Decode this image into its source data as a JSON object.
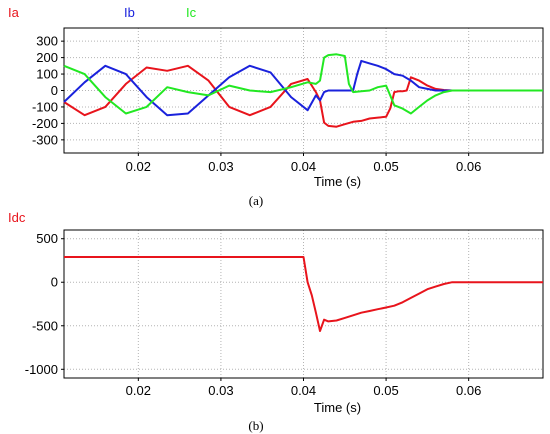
{
  "chart_data": [
    {
      "type": "line",
      "panel": "(a)",
      "xlabel": "Time (s)",
      "xlim": [
        0.011,
        0.069
      ],
      "xticks": [
        "0.02",
        "0.03",
        "0.04",
        "0.05",
        "0.06"
      ],
      "ylim": [
        -380,
        380
      ],
      "yticks": [
        "300",
        "200",
        "100",
        "0",
        "-100",
        "-200",
        "-300"
      ],
      "grid": true,
      "legend": "top-left",
      "series": [
        {
          "name": "Ia",
          "color": "#e8141c",
          "x": [
            0.011,
            0.0135,
            0.016,
            0.0185,
            0.021,
            0.0235,
            0.026,
            0.0285,
            0.031,
            0.0335,
            0.036,
            0.0385,
            0.0405,
            0.0415,
            0.042,
            0.0425,
            0.043,
            0.044,
            0.045,
            0.046,
            0.047,
            0.048,
            0.049,
            0.05,
            0.0505,
            0.051,
            0.0515,
            0.052,
            0.0525,
            0.053,
            0.054,
            0.055,
            0.056,
            0.057,
            0.058,
            0.069
          ],
          "y": [
            -70,
            -150,
            -100,
            40,
            140,
            120,
            150,
            60,
            -100,
            -150,
            -100,
            40,
            70,
            -10,
            -60,
            -195,
            -215,
            -220,
            -205,
            -190,
            -185,
            -170,
            -165,
            -160,
            -110,
            -10,
            -5,
            -5,
            0,
            80,
            60,
            30,
            10,
            3,
            0,
            0
          ]
        },
        {
          "name": "Ib",
          "color": "#1a22dc",
          "x": [
            0.011,
            0.0135,
            0.016,
            0.0185,
            0.021,
            0.0235,
            0.026,
            0.0285,
            0.031,
            0.0335,
            0.036,
            0.0385,
            0.0405,
            0.0415,
            0.042,
            0.0425,
            0.043,
            0.044,
            0.046,
            0.0465,
            0.047,
            0.048,
            0.049,
            0.05,
            0.051,
            0.052,
            0.053,
            0.054,
            0.055,
            0.056,
            0.057,
            0.058,
            0.069
          ],
          "y": [
            -70,
            50,
            150,
            100,
            -40,
            -150,
            -140,
            -30,
            80,
            150,
            110,
            -40,
            -120,
            -30,
            -60,
            -10,
            0,
            0,
            0,
            100,
            180,
            165,
            150,
            130,
            100,
            90,
            60,
            20,
            10,
            0,
            0,
            0,
            0
          ]
        },
        {
          "name": "Ic",
          "color": "#22e822",
          "x": [
            0.011,
            0.0135,
            0.016,
            0.0185,
            0.021,
            0.0235,
            0.026,
            0.0285,
            0.031,
            0.0335,
            0.036,
            0.0385,
            0.0405,
            0.0415,
            0.042,
            0.0425,
            0.043,
            0.044,
            0.045,
            0.0455,
            0.046,
            0.047,
            0.048,
            0.049,
            0.05,
            0.051,
            0.052,
            0.053,
            0.054,
            0.055,
            0.056,
            0.057,
            0.058,
            0.069
          ],
          "y": [
            150,
            100,
            -40,
            -140,
            -100,
            20,
            -10,
            -30,
            30,
            0,
            -10,
            20,
            50,
            40,
            60,
            200,
            215,
            220,
            210,
            40,
            -10,
            -5,
            0,
            20,
            30,
            -90,
            -110,
            -140,
            -100,
            -60,
            -30,
            -10,
            0,
            0
          ]
        }
      ]
    },
    {
      "type": "line",
      "panel": "(b)",
      "xlabel": "Time (s)",
      "xlim": [
        0.011,
        0.069
      ],
      "xticks": [
        "0.02",
        "0.03",
        "0.04",
        "0.05",
        "0.06"
      ],
      "ylim": [
        -1100,
        600
      ],
      "yticks": [
        "500",
        "0",
        "-500",
        "-1000"
      ],
      "grid": true,
      "legend": "top-left",
      "series": [
        {
          "name": "Idc",
          "color": "#e8141c",
          "x": [
            0.011,
            0.04,
            0.0405,
            0.041,
            0.0415,
            0.042,
            0.0425,
            0.043,
            0.044,
            0.045,
            0.046,
            0.047,
            0.048,
            0.049,
            0.05,
            0.051,
            0.052,
            0.053,
            0.054,
            0.055,
            0.056,
            0.057,
            0.058,
            0.069
          ],
          "y": [
            290,
            290,
            0,
            -150,
            -350,
            -560,
            -430,
            -450,
            -440,
            -410,
            -380,
            -350,
            -330,
            -310,
            -290,
            -270,
            -230,
            -180,
            -130,
            -80,
            -50,
            -20,
            0,
            0
          ]
        }
      ]
    }
  ],
  "captions": {
    "a": "(a)",
    "b": "(b)"
  }
}
